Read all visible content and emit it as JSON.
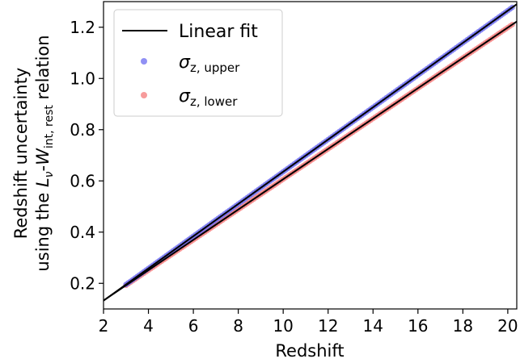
{
  "chart_data": {
    "type": "scatter",
    "xlabel": "Redshift",
    "ylabel_line1": "Redshift uncertainty",
    "ylabel_line2": {
      "prefix": "using the ",
      "L": "L",
      "nu": "ν",
      "dash": "-",
      "W": "W",
      "w_sub": "int, rest",
      "suffix": " relation"
    },
    "xlim": [
      2.0,
      20.4
    ],
    "ylim": [
      0.1,
      1.3
    ],
    "xticks": [
      "2",
      "4",
      "6",
      "8",
      "10",
      "12",
      "14",
      "16",
      "18",
      "20"
    ],
    "yticks": [
      "0.2",
      "0.4",
      "0.6",
      "0.8",
      "1.0",
      "1.2"
    ],
    "grid": false,
    "legend_position": "top-left",
    "legend": {
      "linear_fit_label": "Linear fit",
      "upper_sigma": "σ",
      "upper_sub": "z, upper",
      "lower_sigma": "σ",
      "lower_sub": "z, lower"
    },
    "colors": {
      "upper": "#6b6bf0",
      "lower": "#f47a7a",
      "fit": "#000000"
    },
    "series": [
      {
        "key": "upper",
        "x_start": 3.0,
        "x_end": 20.2,
        "x_step": 0.1,
        "slope": 0.0629,
        "intercept": 0.0067
      },
      {
        "key": "lower",
        "x_start": 3.0,
        "x_end": 20.2,
        "x_step": 0.1,
        "slope": 0.0592,
        "intercept": 0.0146
      }
    ],
    "fits": [
      {
        "key": "upper_fit",
        "x_range": [
          2.0,
          20.4
        ],
        "slope": 0.0629,
        "intercept": 0.0067
      },
      {
        "key": "lower_fit",
        "x_range": [
          2.0,
          20.4
        ],
        "slope": 0.0592,
        "intercept": 0.0146
      }
    ]
  }
}
